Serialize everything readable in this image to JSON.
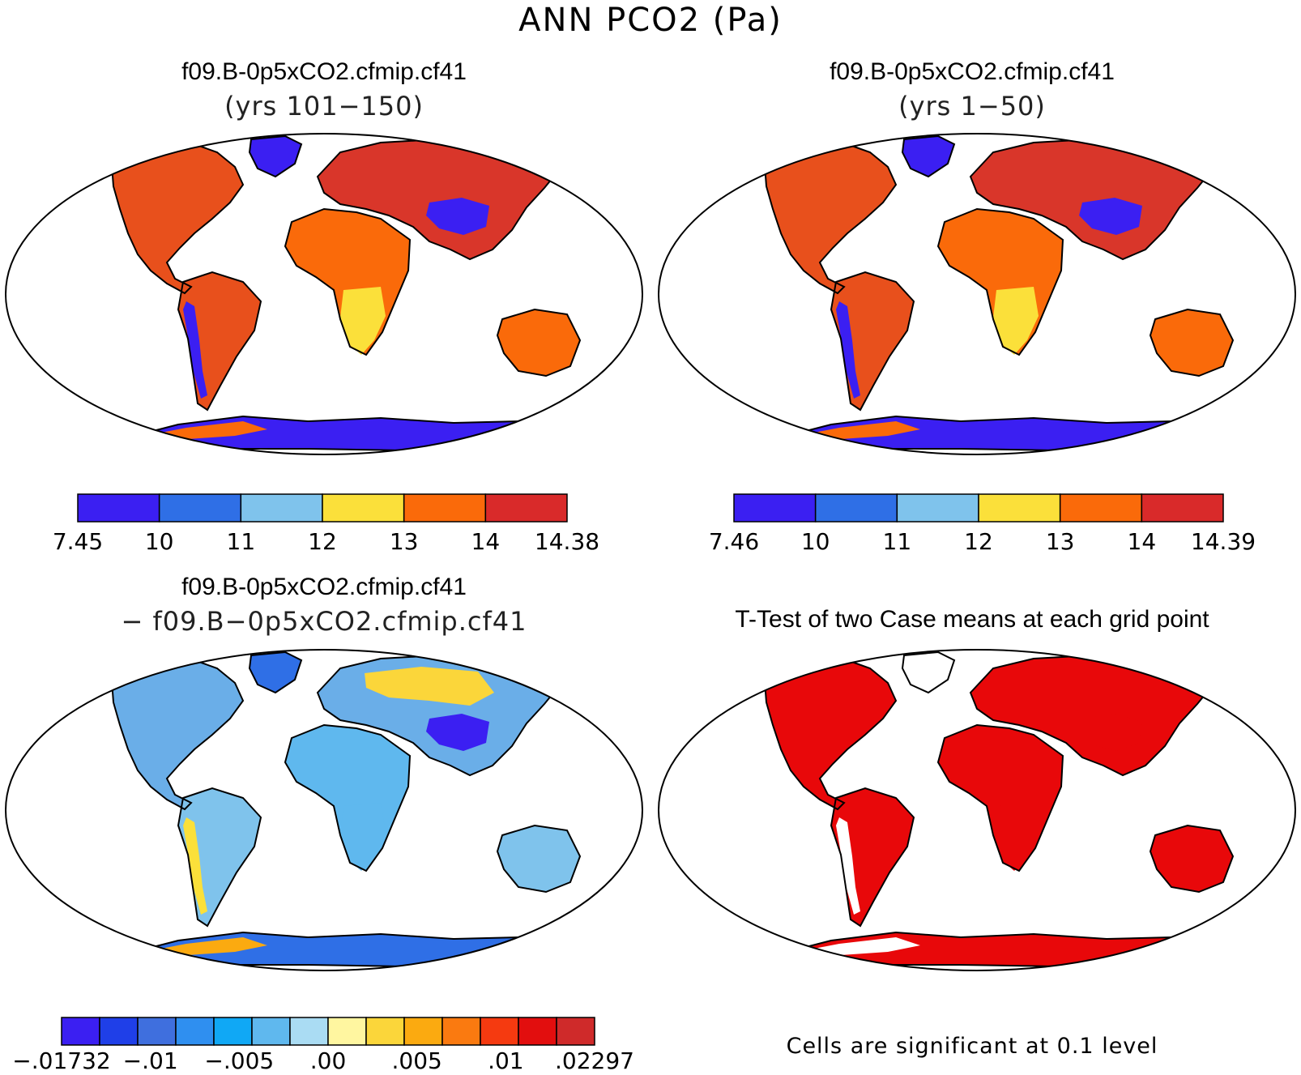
{
  "figure": {
    "title": "ANN PCO2 (Pa)",
    "no_data_color": "#ffffff",
    "coastline_color": "#000000"
  },
  "panels": [
    {
      "title": "f09.B-0p5xCO2.cfmip.cf41",
      "subtitle": "(yrs 101−150)",
      "projection": "robinson",
      "colorbar": {
        "colors": [
          "#3b1ff2",
          "#2f6fe6",
          "#7fc3ec",
          "#fbe03a",
          "#fa6a0a",
          "#d92a2a"
        ],
        "labels": [
          "7.45",
          "10",
          "11",
          "12",
          "13",
          "14",
          "14.38"
        ]
      },
      "regions": {
        "north_america": "#e8501c",
        "greenland": "#3b1ff2",
        "south_america": "#e8501c",
        "andes": "#3b1ff2",
        "europe_asia": "#d9362a",
        "tibet": "#3b1ff2",
        "africa": "#fa6a0a",
        "southern_africa": "#fbe03a",
        "australia": "#fa6a0a",
        "antarctica": "#3b1ff2",
        "antarctica_coast": "#fa6a0a"
      }
    },
    {
      "title": "f09.B-0p5xCO2.cfmip.cf41",
      "subtitle": "(yrs 1−50)",
      "projection": "robinson",
      "colorbar": {
        "colors": [
          "#3b1ff2",
          "#2f6fe6",
          "#7fc3ec",
          "#fbe03a",
          "#fa6a0a",
          "#d92a2a"
        ],
        "labels": [
          "7.46",
          "10",
          "11",
          "12",
          "13",
          "14",
          "14.39"
        ]
      },
      "regions": {
        "north_america": "#e8501c",
        "greenland": "#3b1ff2",
        "south_america": "#e8501c",
        "andes": "#3b1ff2",
        "europe_asia": "#d9362a",
        "tibet": "#3b1ff2",
        "africa": "#fa6a0a",
        "southern_africa": "#fbe03a",
        "australia": "#fa6a0a",
        "antarctica": "#3b1ff2",
        "antarctica_coast": "#fa6a0a"
      }
    },
    {
      "title": "f09.B-0p5xCO2.cfmip.cf41",
      "subtitle": "− f09.B−0p5xCO2.cfmip.cf41",
      "projection": "robinson",
      "colorbar": {
        "colors": [
          "#3b1ff2",
          "#1f3fe8",
          "#3f6fde",
          "#2f8ff0",
          "#10a8f5",
          "#5fb8ee",
          "#aadcf3",
          "#fff6a0",
          "#fbd63a",
          "#fbaa10",
          "#fa7a10",
          "#f53a10",
          "#e20e0e",
          "#cf2a2a"
        ],
        "labels": [
          "−.01732",
          "−.01",
          "−.005",
          ".00",
          ".005",
          ".01",
          ".02297"
        ]
      },
      "regions": {
        "north_america": "#6aaee8",
        "greenland": "#2f6fe6",
        "south_america": "#7fc3ec",
        "andes": "#fbe03a",
        "europe_asia": "#6aaee8",
        "siberia": "#fbd63a",
        "tibet": "#3b1ff2",
        "africa": "#5fb8ee",
        "southern_africa": "#5fb8ee",
        "australia": "#7fc3ec",
        "antarctica": "#2f6fe6",
        "antarctica_coast": "#fbaa10"
      }
    },
    {
      "title": "T-Test of two Case means at each grid point",
      "note": "Cells are significant at 0.1 level",
      "projection": "robinson",
      "significant_color": "#e8080a",
      "regions": {
        "north_america": "#e8080a",
        "greenland": "#ffffff",
        "south_america": "#e8080a",
        "andes": "#ffffff",
        "europe_asia": "#e8080a",
        "tibet": "#e8080a",
        "africa": "#e8080a",
        "southern_africa": "#e8080a",
        "australia": "#e8080a",
        "antarctica": "#e8080a",
        "antarctica_coast": "#ffffff"
      }
    }
  ]
}
